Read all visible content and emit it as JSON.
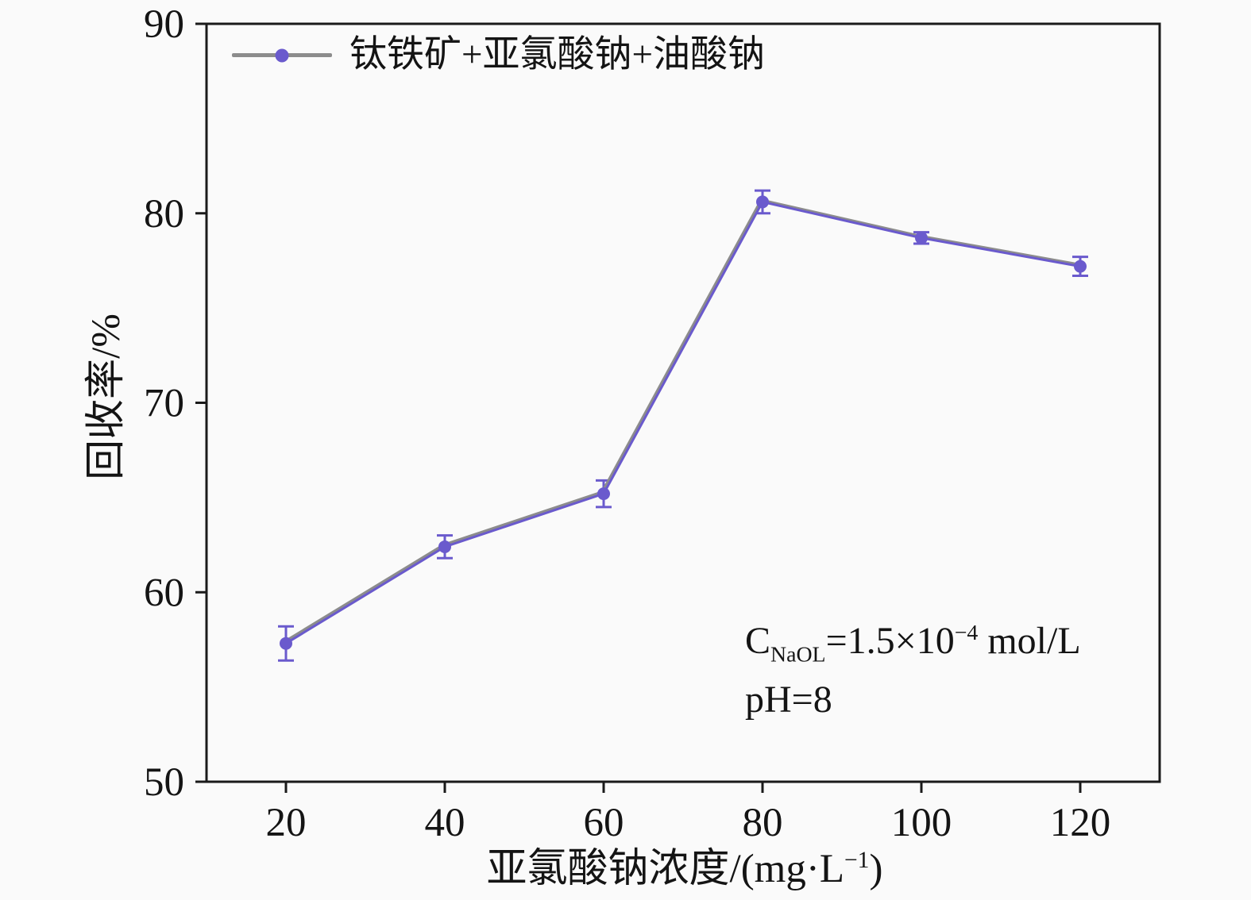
{
  "figure": {
    "background": "#fafafa",
    "legend": {
      "label": "钛铁矿+亚氯酸钠+油酸钠"
    },
    "annotation": {
      "line1": {
        "pre": "C",
        "sub": "NaOL",
        "mid": "=1.5×10",
        "sup": "−4",
        "post": " mol/L"
      },
      "line2": "pH=8"
    },
    "x_axis_label": {
      "pre": "亚氯酸钠浓度/(mg·L",
      "sup": "−1",
      "post": ")"
    },
    "y_axis_label": "回收率/%"
  },
  "chart_data": {
    "type": "line",
    "title": "",
    "xlabel": "亚氯酸钠浓度/(mg·L⁻¹)",
    "ylabel": "回收率/%",
    "x": [
      20,
      40,
      60,
      80,
      100,
      120
    ],
    "series": [
      {
        "name": "钛铁矿+亚氯酸钠+油酸钠",
        "values": [
          57.3,
          62.4,
          65.2,
          80.6,
          78.7,
          77.2
        ],
        "errors": [
          0.9,
          0.6,
          0.7,
          0.6,
          0.3,
          0.5
        ]
      }
    ],
    "xlim": [
      10,
      130
    ],
    "ylim": [
      50,
      90
    ],
    "x_ticks": [
      20,
      40,
      60,
      80,
      100,
      120
    ],
    "y_ticks": [
      50,
      60,
      70,
      80,
      90
    ],
    "grid": false,
    "legend_position": "top-left",
    "annotations": [
      "C_NaOL=1.5×10−4 mol/L",
      "pH=8"
    ],
    "colors": {
      "line_gray": "#8c8c8c",
      "line_purple": "#6a5acd",
      "marker": "#6a5acd",
      "error_bar": "#6a5acd",
      "axis": "#1a1a1a",
      "text": "#141414"
    }
  }
}
